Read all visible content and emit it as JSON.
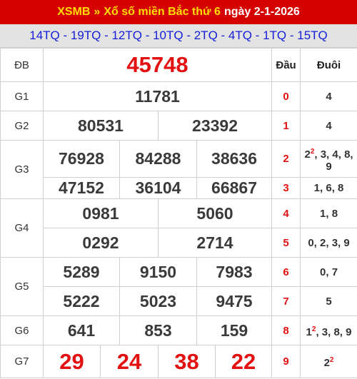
{
  "header": {
    "site": "XSMB",
    "separator": "»",
    "title": "Xổ số miền Bắc thứ 6",
    "date_label": "ngày 2-1-2026"
  },
  "codes": "14TQ - 19TQ - 12TQ - 10TQ - 2TQ - 4TQ - 1TQ - 15TQ",
  "prizes": {
    "db": {
      "label": "ĐB",
      "numbers": [
        "45748"
      ]
    },
    "g1": {
      "label": "G1",
      "numbers": [
        "11781"
      ]
    },
    "g2": {
      "label": "G2",
      "numbers": [
        "80531",
        "23392"
      ]
    },
    "g3": {
      "label": "G3",
      "numbers": [
        "76928",
        "84288",
        "38636",
        "47152",
        "36104",
        "66867"
      ]
    },
    "g4": {
      "label": "G4",
      "numbers": [
        "0981",
        "5060",
        "0292",
        "2714"
      ]
    },
    "g5": {
      "label": "G5",
      "numbers": [
        "5289",
        "9150",
        "7983",
        "5222",
        "5023",
        "9475"
      ]
    },
    "g6": {
      "label": "G6",
      "numbers": [
        "641",
        "853",
        "159"
      ]
    },
    "g7": {
      "label": "G7",
      "numbers": [
        "29",
        "24",
        "38",
        "22"
      ]
    }
  },
  "loto": {
    "head_label": "Đầu",
    "tail_label": "Đuôi",
    "rows": [
      {
        "head": "0",
        "tail": "4",
        "sup": ""
      },
      {
        "head": "1",
        "tail": "4",
        "sup": ""
      },
      {
        "head": "2",
        "tail_a": "2",
        "sup": "2",
        "tail_b": ", 3, 4, 8, 9"
      },
      {
        "head": "3",
        "tail": "1, 6, 8",
        "sup": ""
      },
      {
        "head": "4",
        "tail": "1, 8",
        "sup": ""
      },
      {
        "head": "5",
        "tail": "0, 2, 3, 9",
        "sup": ""
      },
      {
        "head": "6",
        "tail": "0, 7",
        "sup": ""
      },
      {
        "head": "7",
        "tail": "5",
        "sup": ""
      },
      {
        "head": "8",
        "tail_a": "1",
        "sup": "2",
        "tail_b": ", 3, 8, 9"
      },
      {
        "head": "9",
        "tail_a": "2",
        "sup": "2",
        "tail_b": ""
      }
    ]
  }
}
